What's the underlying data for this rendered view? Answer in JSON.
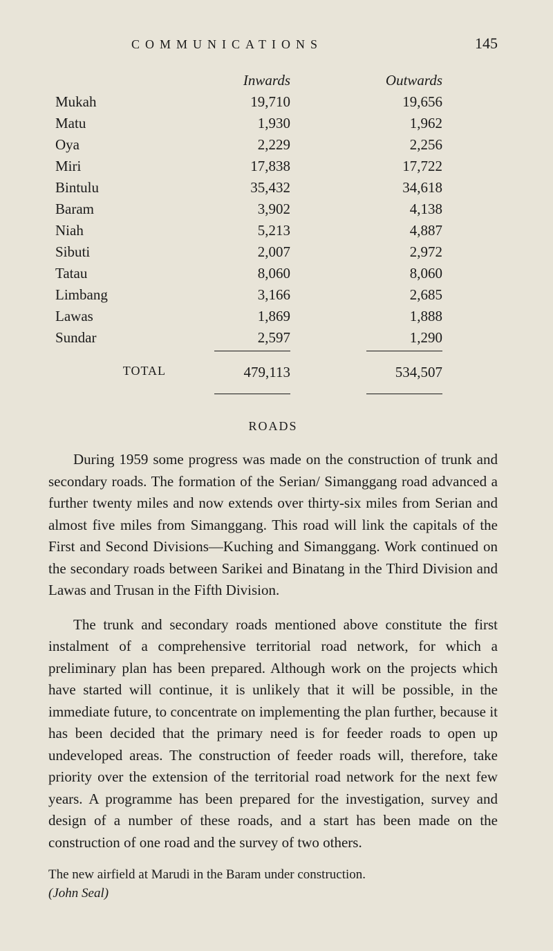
{
  "header": {
    "title": "COMMUNICATIONS",
    "page_number": "145"
  },
  "table": {
    "headers": {
      "inwards": "Inwards",
      "outwards": "Outwards"
    },
    "rows": [
      {
        "label": "Mukah",
        "inwards": "19,710",
        "outwards": "19,656"
      },
      {
        "label": "Matu",
        "inwards": "1,930",
        "outwards": "1,962"
      },
      {
        "label": "Oya",
        "inwards": "2,229",
        "outwards": "2,256"
      },
      {
        "label": "Miri",
        "inwards": "17,838",
        "outwards": "17,722"
      },
      {
        "label": "Bintulu",
        "inwards": "35,432",
        "outwards": "34,618"
      },
      {
        "label": "Baram",
        "inwards": "3,902",
        "outwards": "4,138"
      },
      {
        "label": "Niah",
        "inwards": "5,213",
        "outwards": "4,887"
      },
      {
        "label": "Sibuti",
        "inwards": "2,007",
        "outwards": "2,972"
      },
      {
        "label": "Tatau",
        "inwards": "8,060",
        "outwards": "8,060"
      },
      {
        "label": "Limbang",
        "inwards": "3,166",
        "outwards": "2,685"
      },
      {
        "label": "Lawas",
        "inwards": "1,869",
        "outwards": "1,888"
      },
      {
        "label": "Sundar",
        "inwards": "2,597",
        "outwards": "1,290"
      }
    ],
    "total": {
      "label": "TOTAL",
      "inwards": "479,113",
      "outwards": "534,507"
    }
  },
  "section_heading": "ROADS",
  "paragraphs": {
    "p1": "During 1959 some progress was made on the construction of trunk and secondary roads. The formation of the Serian/ Simanggang road advanced a further twenty miles and now extends over thirty-six miles from Serian and almost five miles from Simanggang. This road will link the capitals of the First and Second Divisions—Kuching and Simanggang. Work continued on the secondary roads between Sarikei and Binatang in the Third Division and Lawas and Trusan in the Fifth Division.",
    "p2": "The trunk and secondary roads mentioned above constitute the first instalment of a comprehensive territorial road network, for which a preliminary plan has been prepared. Although work on the projects which have started will continue, it is unlikely that it will be possible, in the immediate future, to concentrate on implementing the plan further, because it has been decided that the primary need is for feeder roads to open up undeveloped areas. The construction of feeder roads will, therefore, take priority over the extension of the territorial road network for the next few years. A programme has been prepared for the investigation, survey and design of a number of these roads, and a start has been made on the construction of one road and the survey of two others."
  },
  "caption": {
    "text": "The new airfield at Marudi in the Baram under construction.",
    "credit": "(John Seal)"
  }
}
